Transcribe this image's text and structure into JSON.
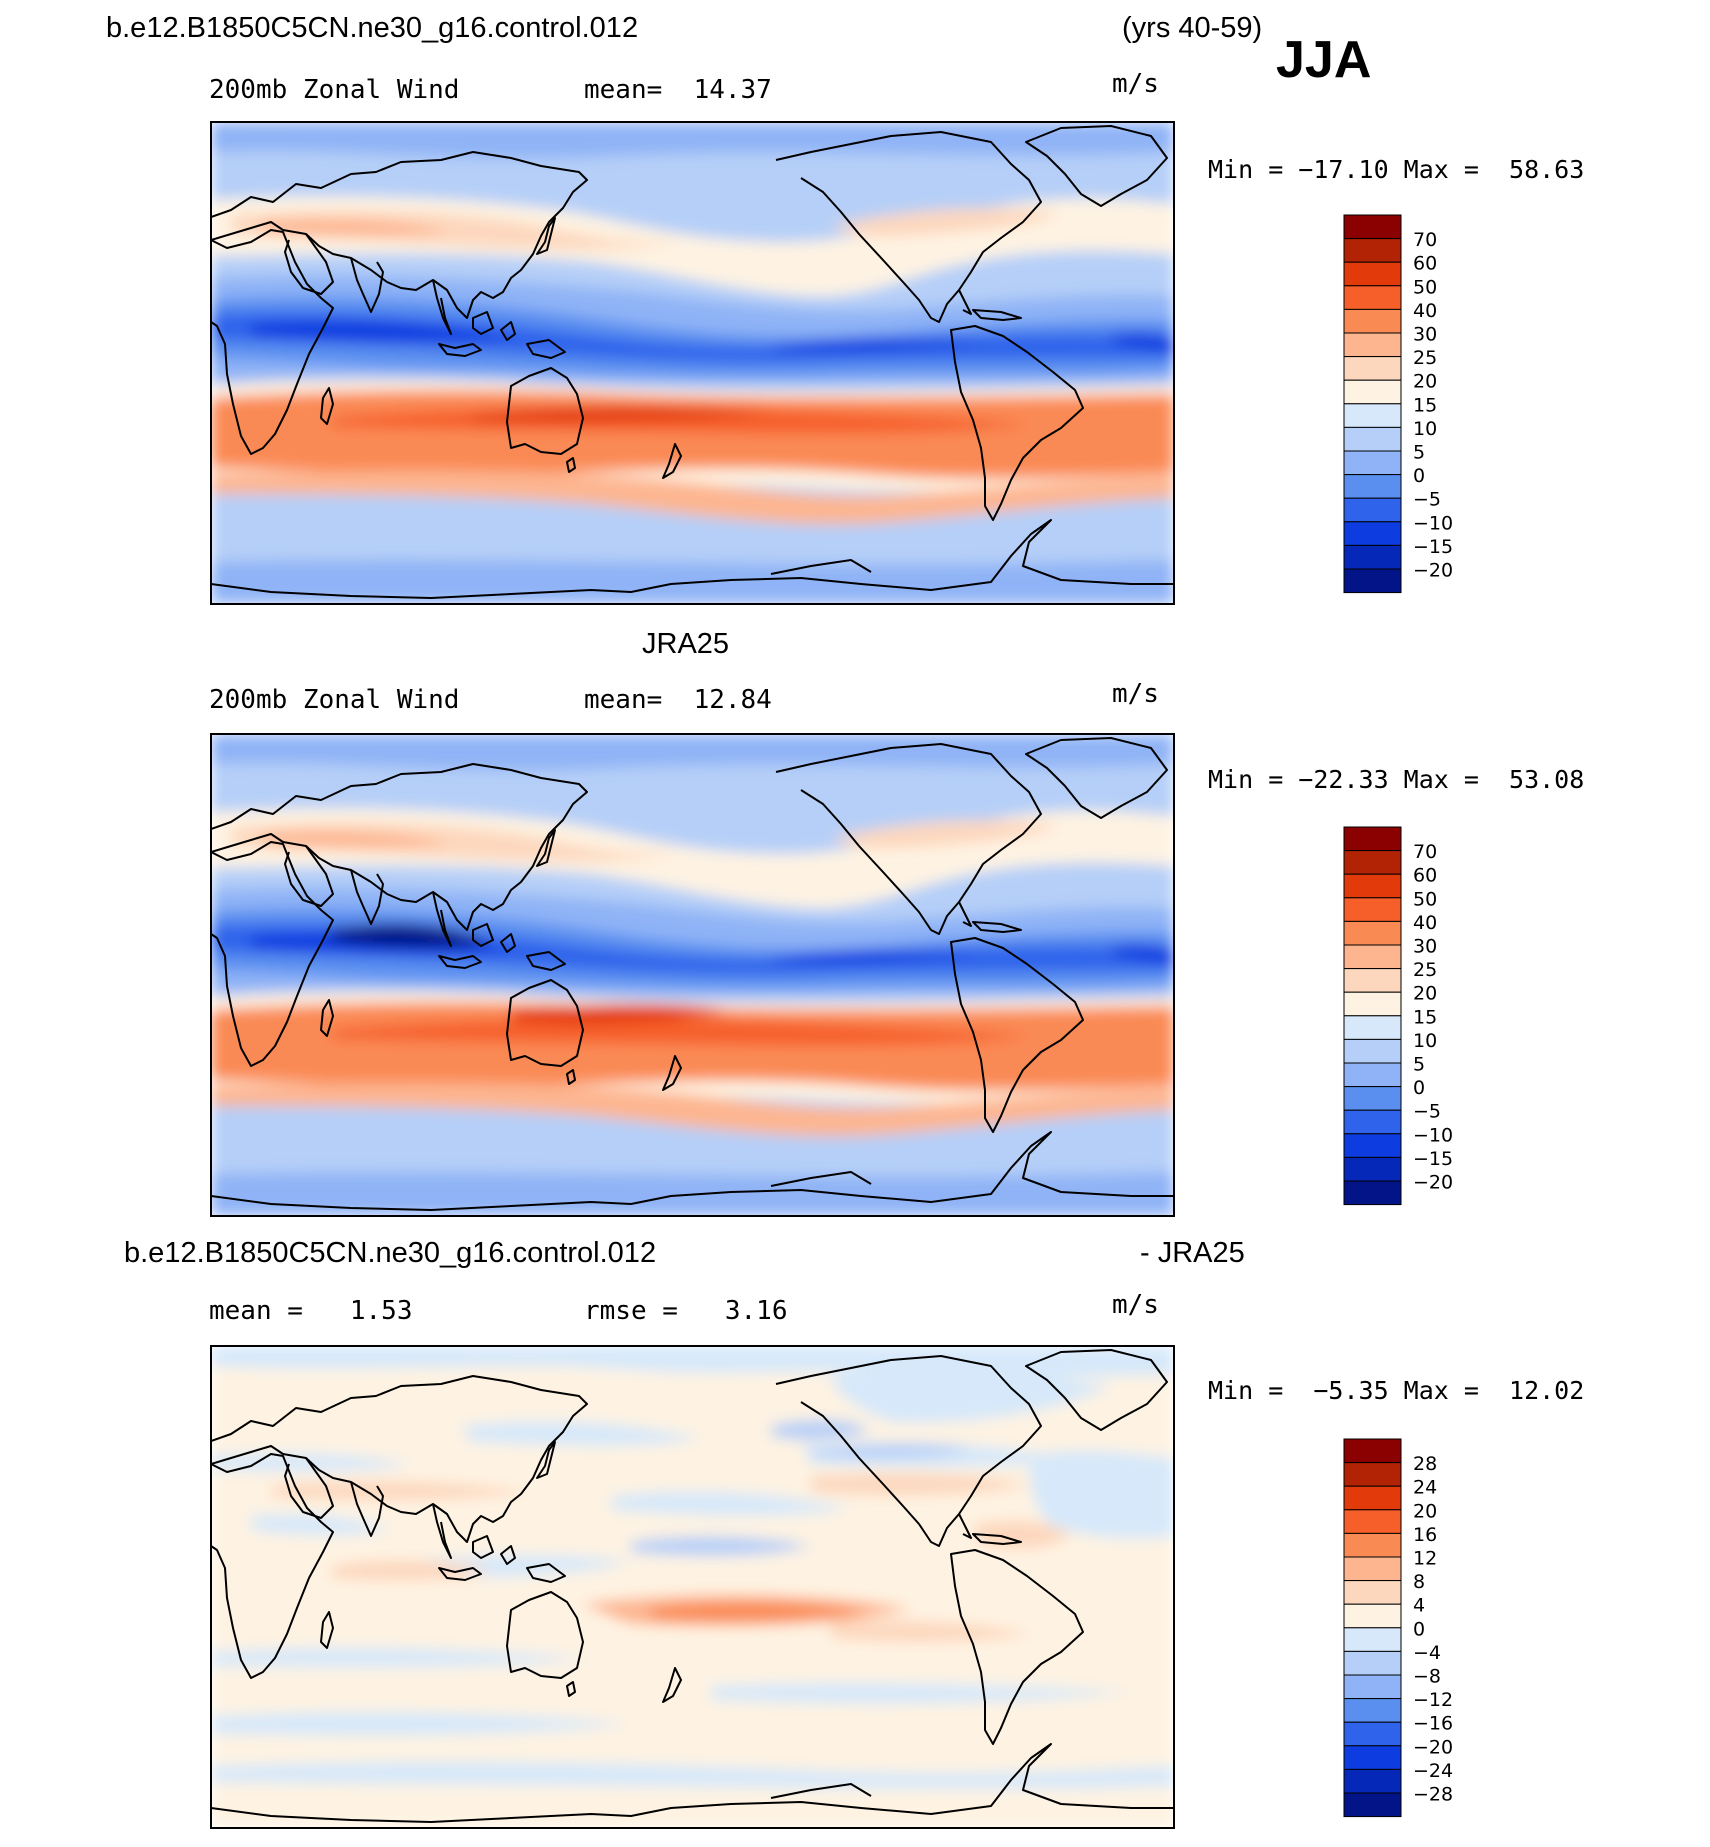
{
  "header": {
    "case_name": "b.e12.B1850C5CN.ne30_g16.control.012",
    "years": "(yrs 40-59)",
    "season": "JJA"
  },
  "panels": [
    {
      "title": "",
      "left_label": "200mb Zonal Wind",
      "center_label": "mean=  14.37",
      "units": "m/s",
      "minmax": "Min = −17.10 Max =  58.63",
      "levels": [
        "70",
        "60",
        "50",
        "40",
        "30",
        "25",
        "20",
        "15",
        "10",
        "5",
        "0",
        "−5",
        "−10",
        "−15",
        "−20"
      ],
      "colors": [
        "#8b0000",
        "#b22205",
        "#e33a0b",
        "#f65f2a",
        "#fa8a54",
        "#fdb590",
        "#fdd7bd",
        "#fef3e2",
        "#d6e8fa",
        "#b5cff8",
        "#8fb3f6",
        "#5a8ff0",
        "#2f63eb",
        "#0d3de0",
        "#0628b8",
        "#031488"
      ]
    },
    {
      "title": "JRA25",
      "left_label": "200mb Zonal Wind",
      "center_label": "mean=  12.84",
      "units": "m/s",
      "minmax": "Min = −22.33 Max =  53.08",
      "levels": [
        "70",
        "60",
        "50",
        "40",
        "30",
        "25",
        "20",
        "15",
        "10",
        "5",
        "0",
        "−5",
        "−10",
        "−15",
        "−20"
      ],
      "colors": [
        "#8b0000",
        "#b22205",
        "#e33a0b",
        "#f65f2a",
        "#fa8a54",
        "#fdb590",
        "#fdd7bd",
        "#fef3e2",
        "#d6e8fa",
        "#b5cff8",
        "#8fb3f6",
        "#5a8ff0",
        "#2f63eb",
        "#0d3de0",
        "#0628b8",
        "#031488"
      ]
    },
    {
      "title_left": "b.e12.B1850C5CN.ne30_g16.control.012",
      "title_right": "- JRA25",
      "left_label": "mean =   1.53",
      "center_label": "rmse =   3.16",
      "units": "m/s",
      "minmax": "Min =  −5.35 Max =  12.02",
      "levels": [
        "28",
        "24",
        "20",
        "16",
        "12",
        "8",
        "4",
        "0",
        "−4",
        "−8",
        "−12",
        "−16",
        "−20",
        "−24",
        "−28"
      ],
      "colors": [
        "#8b0000",
        "#b22205",
        "#e33a0b",
        "#f65f2a",
        "#fa8a54",
        "#fdb590",
        "#fdd7bd",
        "#fef3e2",
        "#d6e8fa",
        "#b5cff8",
        "#8fb3f6",
        "#5a8ff0",
        "#2f63eb",
        "#0d3de0",
        "#0628b8",
        "#031488"
      ]
    }
  ]
}
